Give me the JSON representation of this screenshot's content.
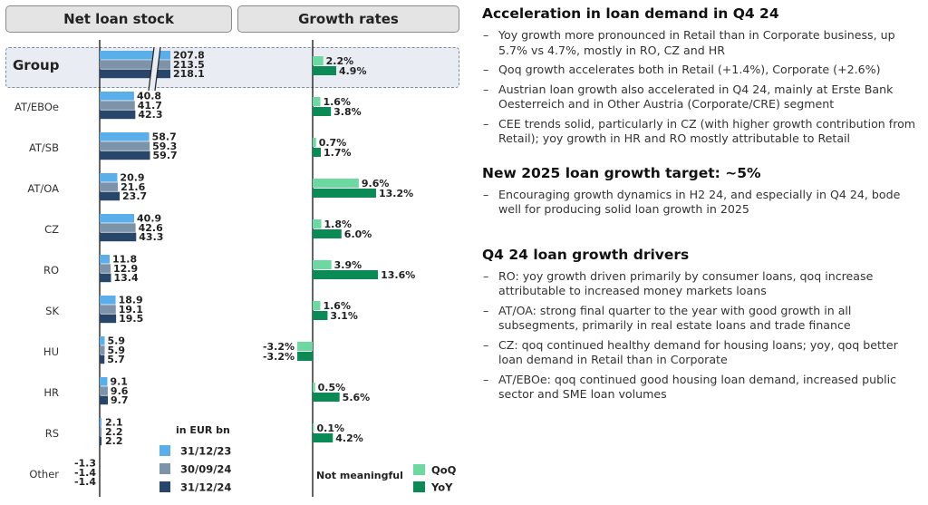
{
  "headers": {
    "net_loan_stock": "Net loan stock",
    "growth_rates": "Growth rates"
  },
  "chart_data": {
    "type": "bar",
    "categories": [
      "Group",
      "AT/EBOe",
      "AT/SB",
      "AT/OA",
      "CZ",
      "RO",
      "SK",
      "HU",
      "HR",
      "RS",
      "Other"
    ],
    "stock": {
      "unit_label": "in EUR bn",
      "series": [
        {
          "name": "31/12/23",
          "color": "#5aaeea",
          "values": [
            207.8,
            40.8,
            58.7,
            20.9,
            40.9,
            11.8,
            18.9,
            5.9,
            9.1,
            2.1,
            -1.3
          ]
        },
        {
          "name": "30/09/24",
          "color": "#7d93aa",
          "values": [
            213.5,
            41.7,
            59.3,
            21.6,
            42.6,
            12.9,
            19.1,
            5.9,
            9.6,
            2.2,
            -1.4
          ]
        },
        {
          "name": "31/12/24",
          "color": "#27466a",
          "values": [
            218.1,
            42.3,
            59.7,
            23.7,
            43.3,
            13.4,
            19.5,
            5.7,
            9.7,
            2.2,
            -1.4
          ]
        }
      ],
      "labels": [
        [
          "207.8",
          "213.5",
          "218.1"
        ],
        [
          "40.8",
          "41.7",
          "42.3"
        ],
        [
          "58.7",
          "59.3",
          "59.7"
        ],
        [
          "20.9",
          "21.6",
          "23.7"
        ],
        [
          "40.9",
          "42.6",
          "43.3"
        ],
        [
          "11.8",
          "12.9",
          "13.4"
        ],
        [
          "18.9",
          "19.1",
          "19.5"
        ],
        [
          "5.9",
          "5.9",
          "5.7"
        ],
        [
          "9.1",
          "9.6",
          "9.7"
        ],
        [
          "2.1",
          "2.2",
          "2.2"
        ],
        [
          "-1.3",
          "-1.4",
          "-1.4"
        ]
      ],
      "axis_break_on": "Group"
    },
    "growth": {
      "unit": "%",
      "series": [
        {
          "name": "QoQ",
          "color": "#6cd9a0",
          "values": [
            2.2,
            1.6,
            0.7,
            9.6,
            1.8,
            3.9,
            1.6,
            -3.2,
            0.5,
            0.1,
            null
          ]
        },
        {
          "name": "YoY",
          "color": "#0a8a55",
          "values": [
            4.9,
            3.8,
            1.7,
            13.2,
            6.0,
            13.6,
            3.1,
            -3.2,
            5.6,
            4.2,
            null
          ]
        }
      ],
      "labels": [
        [
          "2.2%",
          "4.9%"
        ],
        [
          "1.6%",
          "3.8%"
        ],
        [
          "0.7%",
          "1.7%"
        ],
        [
          "9.6%",
          "13.2%"
        ],
        [
          "1.8%",
          "6.0%"
        ],
        [
          "3.9%",
          "13.6%"
        ],
        [
          "1.6%",
          "3.1%"
        ],
        [
          "-3.2%",
          "-3.2%"
        ],
        [
          "0.5%",
          "5.6%"
        ],
        [
          "0.1%",
          "4.2%"
        ],
        [
          null,
          null
        ]
      ],
      "not_meaningful_label": "Not meaningful"
    }
  },
  "commentary": [
    {
      "title": "Acceleration in loan demand in Q4 24",
      "bullets": [
        "Yoy growth more pronounced in Retail than in Corporate business, up 5.7% vs 4.7%, mostly in RO, CZ and HR",
        "Qoq growth accelerates both in Retail (+1.4%), Corporate (+2.6%)",
        "Austrian loan growth also accelerated in Q4 24, mainly at Erste Bank Oesterreich and in Other Austria (Corporate/CRE) segment",
        "CEE trends solid, particularly in CZ (with higher growth contribution from Retail); yoy growth in HR and RO mostly attributable to Retail"
      ]
    },
    {
      "title": "New 2025 loan growth target: ~5%",
      "bullets": [
        "Encouraging growth dynamics in H2 24, and especially in Q4 24, bode well for producing solid loan growth in 2025"
      ]
    },
    {
      "title": "Q4 24 loan growth drivers",
      "bullets": [
        "RO: yoy growth driven primarily by consumer loans, qoq increase attributable to increased money markets loans",
        "AT/OA: strong final quarter to the year with good growth in all subsegments, primarily in real estate loans and trade finance",
        "CZ: qoq continued healthy demand for housing loans; yoy, qoq better loan demand in Retail than in Corporate",
        "AT/EBOe: qoq continued good housing loan demand, increased public sector and SME loan volumes"
      ]
    }
  ]
}
